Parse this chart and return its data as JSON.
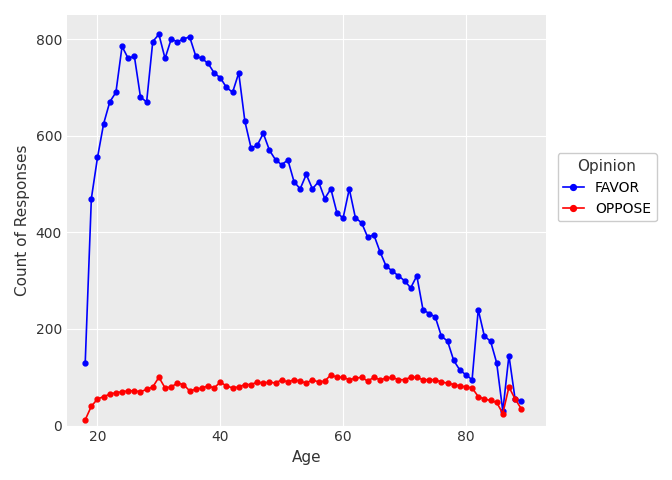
{
  "favor_age": [
    18,
    19,
    20,
    21,
    22,
    23,
    24,
    25,
    26,
    27,
    28,
    29,
    30,
    31,
    32,
    33,
    34,
    35,
    36,
    37,
    38,
    39,
    40,
    41,
    42,
    43,
    44,
    45,
    46,
    47,
    48,
    49,
    50,
    51,
    52,
    53,
    54,
    55,
    56,
    57,
    58,
    59,
    60,
    61,
    62,
    63,
    64,
    65,
    66,
    67,
    68,
    69,
    70,
    71,
    72,
    73,
    74,
    75,
    76,
    77,
    78,
    79,
    80,
    81,
    82,
    83,
    84,
    85,
    86,
    87,
    88,
    89
  ],
  "favor_count": [
    130,
    470,
    555,
    625,
    670,
    690,
    785,
    760,
    765,
    680,
    670,
    795,
    810,
    760,
    800,
    795,
    800,
    805,
    765,
    760,
    750,
    730,
    720,
    700,
    690,
    730,
    630,
    575,
    580,
    605,
    570,
    550,
    540,
    550,
    505,
    490,
    520,
    490,
    505,
    470,
    490,
    440,
    430,
    490,
    430,
    420,
    390,
    395,
    360,
    330,
    320,
    310,
    300,
    285,
    310,
    240,
    232,
    225,
    185,
    175,
    135,
    115,
    105,
    95,
    240,
    185,
    175,
    130,
    30,
    145,
    55,
    50
  ],
  "oppose_age": [
    18,
    19,
    20,
    21,
    22,
    23,
    24,
    25,
    26,
    27,
    28,
    29,
    30,
    31,
    32,
    33,
    34,
    35,
    36,
    37,
    38,
    39,
    40,
    41,
    42,
    43,
    44,
    45,
    46,
    47,
    48,
    49,
    50,
    51,
    52,
    53,
    54,
    55,
    56,
    57,
    58,
    59,
    60,
    61,
    62,
    63,
    64,
    65,
    66,
    67,
    68,
    69,
    70,
    71,
    72,
    73,
    74,
    75,
    76,
    77,
    78,
    79,
    80,
    81,
    82,
    83,
    84,
    85,
    86,
    87,
    88,
    89
  ],
  "oppose_count": [
    12,
    40,
    55,
    60,
    65,
    68,
    70,
    72,
    72,
    70,
    75,
    80,
    100,
    78,
    80,
    88,
    85,
    72,
    75,
    78,
    82,
    78,
    90,
    82,
    78,
    80,
    85,
    85,
    90,
    88,
    90,
    88,
    95,
    90,
    95,
    92,
    88,
    95,
    90,
    92,
    105,
    100,
    100,
    95,
    98,
    100,
    92,
    100,
    95,
    98,
    100,
    95,
    95,
    100,
    100,
    95,
    95,
    95,
    90,
    88,
    85,
    82,
    80,
    78,
    60,
    55,
    52,
    48,
    25,
    80,
    55,
    35
  ],
  "favor_color": "#0000FF",
  "oppose_color": "#FF0000",
  "bg_color": "#FFFFFF",
  "panel_bg_color": "#EBEBEB",
  "grid_color": "#FFFFFF",
  "xlabel": "Age",
  "ylabel": "Count of Responses",
  "legend_title": "Opinion",
  "legend_favor": "FAVOR",
  "legend_oppose": "OPPOSE",
  "xlim": [
    15,
    93
  ],
  "ylim": [
    0,
    850
  ],
  "xticks": [
    20,
    40,
    60,
    80
  ],
  "yticks": [
    0,
    200,
    400,
    600,
    800
  ]
}
